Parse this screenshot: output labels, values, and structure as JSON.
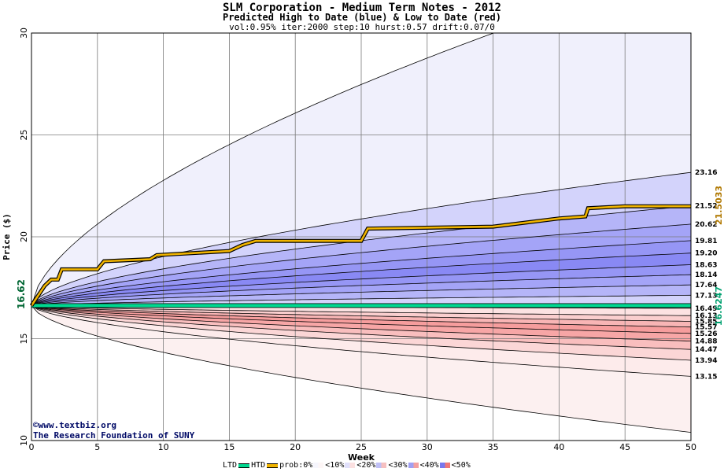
{
  "chart_data": {
    "type": "area",
    "title": "SLM Corporation - Medium Term Notes - 2012",
    "subtitle": "Predicted High to Date (blue) &  Low to Date (red)",
    "params": "vol:0.95% iter:2000 step:10 hurst:0.57 drift:0.07/0",
    "xlabel": "Week",
    "ylabel": "Price ($)",
    "xlim": [
      0,
      50
    ],
    "ylim": [
      10,
      30
    ],
    "x_ticks": [
      "0",
      "5",
      "10",
      "15",
      "20",
      "25",
      "30",
      "35",
      "40",
      "45",
      "50"
    ],
    "y_ticks": [
      "10",
      "15",
      "20",
      "25",
      "30"
    ],
    "grid": true,
    "start_price": "16.62",
    "start_value": 16.62,
    "htd_label": "21.5033",
    "ltd_label": "16.6247",
    "ltd_value": 16.6247,
    "htd_path": [
      [
        0,
        16.62
      ],
      [
        1,
        17.6
      ],
      [
        1.5,
        17.9
      ],
      [
        2,
        17.9
      ],
      [
        2.3,
        18.4
      ],
      [
        5,
        18.4
      ],
      [
        5.5,
        18.8
      ],
      [
        9,
        18.9
      ],
      [
        9.5,
        19.1
      ],
      [
        15,
        19.3
      ],
      [
        16,
        19.6
      ],
      [
        17,
        19.8
      ],
      [
        25,
        19.8
      ],
      [
        25.5,
        20.4
      ],
      [
        35,
        20.5
      ],
      [
        40,
        20.9
      ],
      [
        42,
        21.0
      ],
      [
        42.2,
        21.4
      ],
      [
        45,
        21.5
      ],
      [
        50,
        21.5
      ]
    ],
    "high_bands": [
      {
        "label": "23.16",
        "end": 23.16,
        "alpha": 0.3
      },
      {
        "label": "21.52",
        "end": 21.52,
        "alpha": 0.5
      },
      {
        "label": "20.62",
        "end": 20.62,
        "alpha": 0.62
      },
      {
        "label": "19.81",
        "end": 19.81,
        "alpha": 0.72
      },
      {
        "label": "19.20",
        "end": 19.2,
        "alpha": 0.8
      },
      {
        "label": "18.63",
        "end": 18.63,
        "alpha": 0.72
      },
      {
        "label": "18.14",
        "end": 18.14,
        "alpha": 0.62
      },
      {
        "label": "17.64",
        "end": 17.64,
        "alpha": 0.5
      },
      {
        "label": "17.13",
        "end": 17.13,
        "alpha": 0.3
      }
    ],
    "low_bands": [
      {
        "label": "16.49",
        "end": 16.49,
        "alpha": 0.1
      },
      {
        "label": "16.13",
        "end": 16.13,
        "alpha": 0.18
      },
      {
        "label": "15.85",
        "end": 15.85,
        "alpha": 0.3
      },
      {
        "label": "15.57",
        "end": 15.57,
        "alpha": 0.45
      },
      {
        "label": "15.26",
        "end": 15.26,
        "alpha": 0.6
      },
      {
        "label": "14.88",
        "end": 14.88,
        "alpha": 0.55
      },
      {
        "label": "14.47",
        "end": 14.47,
        "alpha": 0.4
      },
      {
        "label": "13.94",
        "end": 13.94,
        "alpha": 0.25
      },
      {
        "label": "13.15",
        "end": 13.15,
        "alpha": 0.12
      }
    ],
    "outer_high_end": 33.3,
    "outer_low_end": 10.4,
    "colors": {
      "blue": "#5c5cf0",
      "red": "#f05c5c",
      "outer_blue": "#f0f0fc",
      "outer_red": "#fcf0f0",
      "htd_line": "#f0b400",
      "ltd_line": "#00d890",
      "start_label": "#006633",
      "htd_label": "#b07800",
      "ltd_label": "#00a070"
    }
  },
  "credit": {
    "line1": "©www.textbiz.org",
    "line2": "The Research Foundation of SUNY"
  },
  "legend": {
    "ltd": "LTD",
    "htd": "HTD",
    "prob": "prob:0%",
    "items": [
      "<10%",
      "<20%",
      "<30%",
      "<40%",
      "<50%"
    ]
  }
}
